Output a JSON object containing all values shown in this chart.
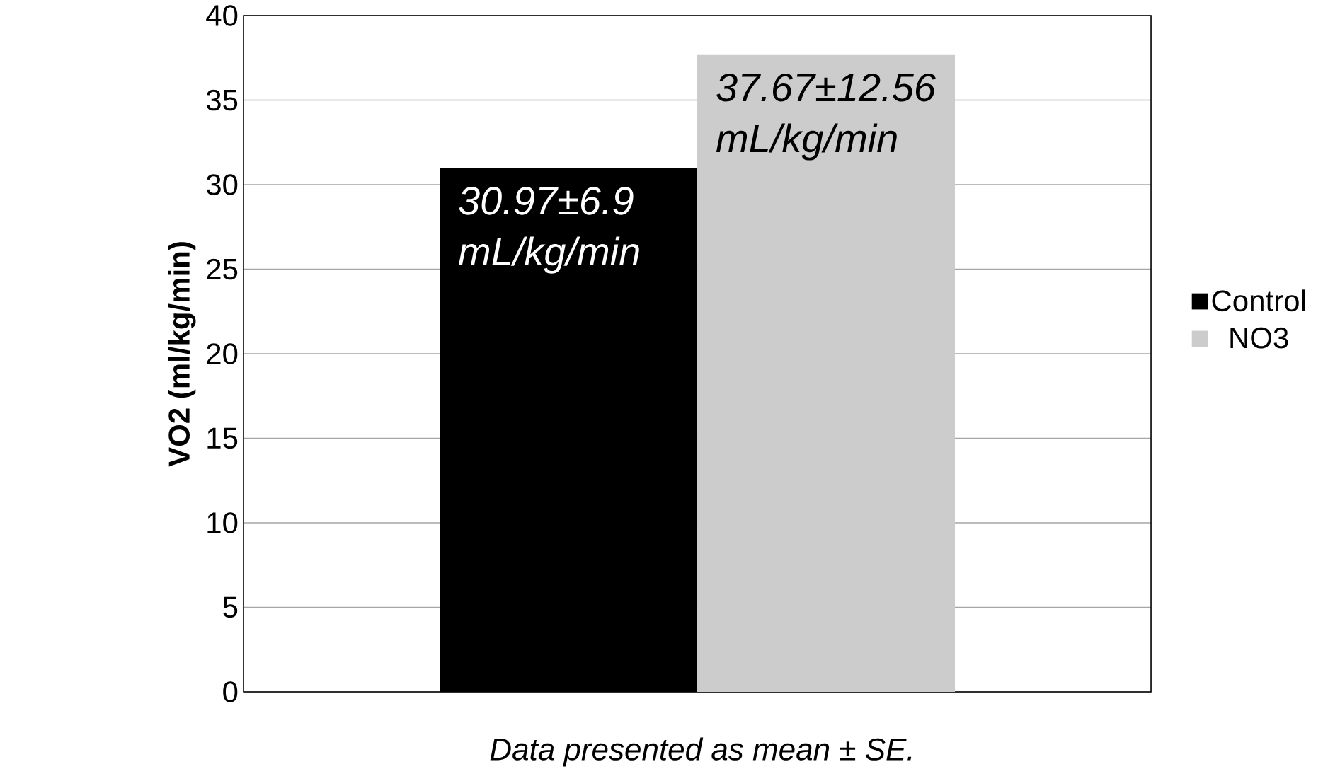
{
  "chart_data": {
    "type": "bar",
    "ylabel": "VO2 (ml/kg/min)",
    "categories": [
      null
    ],
    "series": [
      {
        "name": "Control",
        "color": "#000000",
        "values": [
          30.97
        ],
        "value_labels": [
          "30.97±6.9 mL/kg/min"
        ]
      },
      {
        "name": "NO3",
        "color": "#cccccc",
        "values": [
          37.67
        ],
        "value_labels": [
          "37.67±12.56 mL/kg/min"
        ]
      }
    ],
    "ylim": [
      0,
      40
    ],
    "yticks": [
      0,
      5,
      10,
      15,
      20,
      25,
      30,
      35,
      40
    ],
    "grid": "y",
    "legend": "right",
    "annotations": [
      "Data presented as mean ± SE."
    ]
  }
}
